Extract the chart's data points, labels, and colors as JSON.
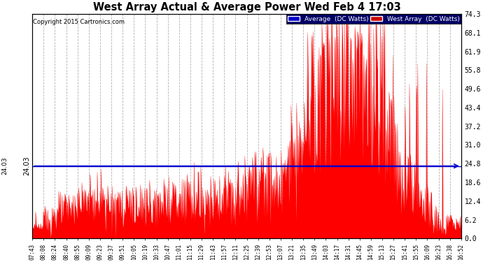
{
  "title": "West Array Actual & Average Power Wed Feb 4 17:03",
  "copyright": "Copyright 2015 Cartronics.com",
  "average_value": 24.03,
  "ylim": [
    0.0,
    74.3
  ],
  "yticks": [
    0.0,
    6.2,
    12.4,
    18.6,
    24.8,
    31.0,
    37.2,
    43.4,
    49.6,
    55.8,
    61.9,
    68.1,
    74.3
  ],
  "west_array_color": "#FF0000",
  "average_color": "#0000CD",
  "background_color": "#FFFFFF",
  "grid_color": "#AAAAAA",
  "legend_avg_label": "Average  (DC Watts)",
  "legend_west_label": "West Array  (DC Watts)",
  "avg_label_bg": "#0000CC",
  "west_label_bg": "#CC0000",
  "xtick_labels": [
    "07:43",
    "08:08",
    "08:24",
    "08:40",
    "08:55",
    "09:09",
    "09:23",
    "09:37",
    "09:51",
    "10:05",
    "10:19",
    "10:33",
    "10:47",
    "11:01",
    "11:15",
    "11:29",
    "11:43",
    "11:57",
    "12:11",
    "12:25",
    "12:39",
    "12:53",
    "13:07",
    "13:21",
    "13:35",
    "13:49",
    "14:03",
    "14:17",
    "14:31",
    "14:45",
    "14:59",
    "15:13",
    "15:27",
    "15:41",
    "15:55",
    "16:09",
    "16:23",
    "16:38",
    "16:52"
  ],
  "num_points": 780
}
